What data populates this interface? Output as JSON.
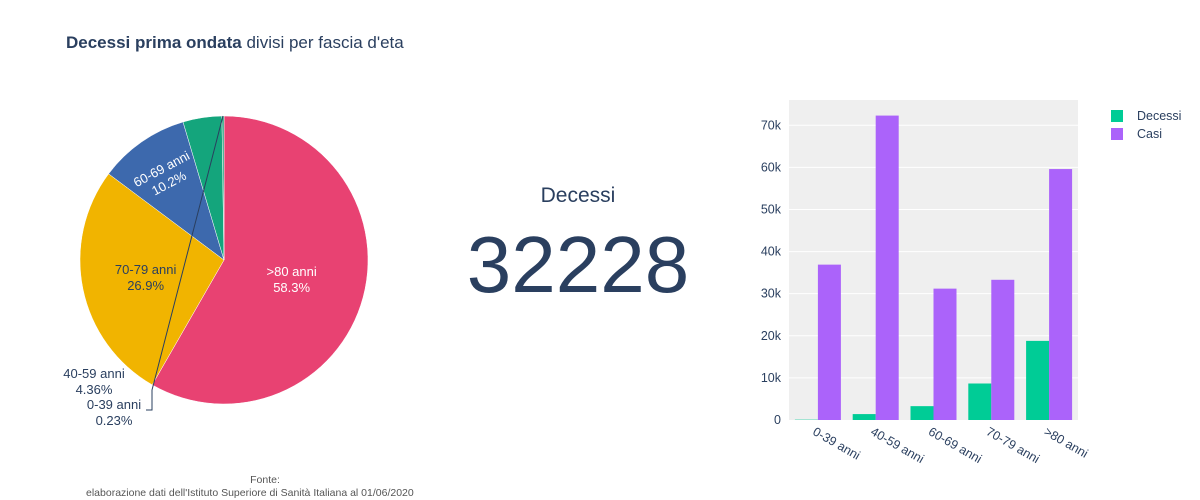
{
  "title_bold": "Decessi prima ondata",
  "title_rest": " divisi per fascia d'eta",
  "indicator": {
    "label": "Decessi",
    "value": "32228"
  },
  "source": {
    "line1": "Fonte:",
    "line2": "elaborazione dati dell'Istituto Superiore di Sanità Italiana al 01/06/2020"
  },
  "colors": {
    "pie": [
      "#e84272",
      "#f1b400",
      "#3d69ad",
      "#14a57c",
      "#1b9e77"
    ],
    "decessi": "#00cc96",
    "casi": "#ab63fa",
    "plotbg": "#efefef"
  },
  "chart_data": [
    {
      "type": "pie",
      "labels": [
        ">80 anni",
        "70-79 anni",
        "60-69 anni",
        "40-59 anni",
        "0-39 anni"
      ],
      "percent_labels": [
        "58.3%",
        "26.9%",
        "10.2%",
        "4.36%",
        "0.23%"
      ],
      "values": [
        58.3,
        26.9,
        10.2,
        4.36,
        0.23
      ]
    },
    {
      "type": "bar",
      "categories": [
        "0-39 anni",
        "40-59 anni",
        "60-69 anni",
        "70-79 anni",
        ">80 anni"
      ],
      "series": [
        {
          "name": "Decessi",
          "values": [
            74,
            1405,
            3290,
            8669,
            18790
          ]
        },
        {
          "name": "Casi",
          "values": [
            36900,
            72300,
            31200,
            33300,
            59600
          ]
        }
      ],
      "yticks": [
        "0",
        "10k",
        "20k",
        "30k",
        "40k",
        "50k",
        "60k",
        "70k"
      ],
      "ylim": [
        0,
        76000
      ]
    }
  ]
}
